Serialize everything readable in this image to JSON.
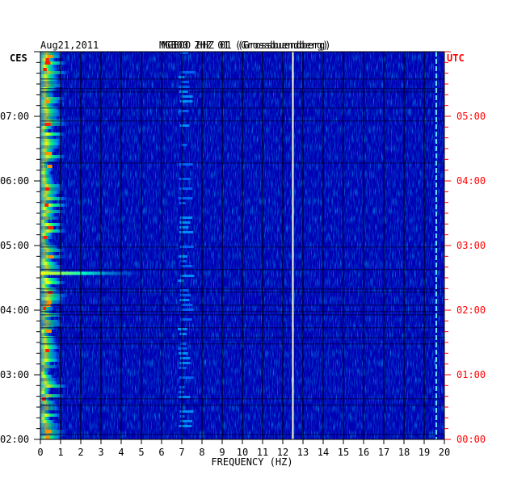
{
  "chart_data": {
    "type": "heatmap",
    "date": "Aug21,2011",
    "station_title": "MGB00 ZHZ 01 (Grossbuendberg)",
    "station_title_overlay": "MGBOO HHZ 01 (Grossbuendberg)",
    "left_timezone": "CES",
    "right_timezone": "UTC",
    "xlabel": "FREQUENCY (HZ)",
    "x_ticks": [
      "0",
      "1",
      "2",
      "3",
      "4",
      "5",
      "6",
      "7",
      "8",
      "9",
      "10",
      "11",
      "12",
      "13",
      "14",
      "15",
      "16",
      "17",
      "18",
      "19",
      "20"
    ],
    "xlim": [
      0,
      20
    ],
    "left_time_labels": [
      "07:00",
      "06:00",
      "05:00",
      "04:00",
      "03:00",
      "02:00"
    ],
    "right_time_labels": [
      "05:00",
      "04:00",
      "03:00",
      "02:00",
      "01:00",
      "00:00"
    ],
    "left_time_hours": [
      7,
      6,
      5,
      4,
      3,
      2
    ],
    "right_time_hours": [
      5,
      4,
      3,
      2,
      1,
      0
    ],
    "time_range_ces": [
      2.0,
      8.0
    ],
    "colormap": [
      "#000080",
      "#0000ff",
      "#00c8ff",
      "#00ff80",
      "#ffff00",
      "#ff8000",
      "#ff0000"
    ],
    "features": [
      {
        "kind": "band",
        "freq_hz": [
          0,
          1.0
        ],
        "level": "high",
        "note": "strong low-frequency energy"
      },
      {
        "kind": "band",
        "freq_hz": [
          6.8,
          7.6
        ],
        "level": "medium"
      },
      {
        "kind": "line",
        "freq_hz": 12.5,
        "level": "very-high",
        "note": "narrow spectral line"
      },
      {
        "kind": "line",
        "freq_hz": 19.6,
        "level": "high",
        "note": "narrow spectral line"
      },
      {
        "kind": "burst",
        "freq_hz": [
          0,
          5.3
        ],
        "time_ces": 4.57,
        "level": "high"
      }
    ]
  },
  "colors": {
    "background": "#ffffff",
    "left_text": "#000000",
    "right_text": "#ff0000",
    "grid": "#000000"
  }
}
